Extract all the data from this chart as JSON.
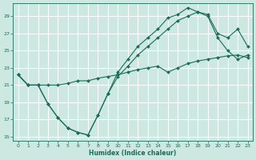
{
  "xlabel": "Humidex (Indice chaleur)",
  "bg_color": "#cce8e0",
  "grid_color": "#ffffff",
  "line_color": "#1a6b5a",
  "xlim": [
    -0.5,
    23.5
  ],
  "ylim": [
    14.5,
    30.5
  ],
  "xticks": [
    0,
    1,
    2,
    3,
    4,
    5,
    6,
    7,
    8,
    9,
    10,
    11,
    12,
    13,
    14,
    15,
    16,
    17,
    18,
    19,
    20,
    21,
    22,
    23
  ],
  "yticks": [
    15,
    17,
    19,
    21,
    23,
    25,
    27,
    29
  ],
  "line1_x": [
    0,
    1,
    2,
    3,
    4,
    5,
    6,
    7,
    8,
    9,
    10,
    11,
    12,
    13,
    14,
    15,
    16,
    17,
    18,
    19,
    20,
    21,
    22,
    23
  ],
  "line1_y": [
    22.2,
    21.0,
    21.0,
    18.8,
    17.2,
    16.0,
    15.5,
    15.2,
    17.5,
    20.0,
    22.5,
    24.0,
    25.5,
    26.5,
    27.5,
    28.8,
    29.2,
    30.0,
    29.5,
    29.2,
    27.0,
    26.5,
    27.5,
    25.5
  ],
  "line2_x": [
    0,
    1,
    2,
    3,
    4,
    5,
    6,
    7,
    8,
    9,
    10,
    11,
    12,
    13,
    14,
    15,
    16,
    17,
    18,
    19,
    20,
    21,
    22,
    23
  ],
  "line2_y": [
    22.2,
    21.0,
    21.0,
    18.8,
    17.2,
    16.0,
    15.5,
    15.2,
    17.5,
    20.0,
    22.0,
    23.2,
    24.5,
    25.5,
    26.5,
    27.5,
    28.5,
    29.0,
    29.5,
    29.0,
    26.5,
    25.0,
    24.0,
    24.5
  ],
  "line3_x": [
    0,
    1,
    2,
    3,
    4,
    5,
    6,
    7,
    8,
    9,
    10,
    11,
    12,
    13,
    14,
    15,
    16,
    17,
    18,
    19,
    20,
    21,
    22,
    23
  ],
  "line3_y": [
    22.2,
    21.0,
    21.0,
    21.0,
    21.0,
    21.2,
    21.5,
    21.5,
    21.8,
    22.0,
    22.2,
    22.5,
    22.8,
    23.0,
    23.2,
    22.5,
    23.0,
    23.5,
    23.8,
    24.0,
    24.2,
    24.4,
    24.5,
    24.2
  ]
}
